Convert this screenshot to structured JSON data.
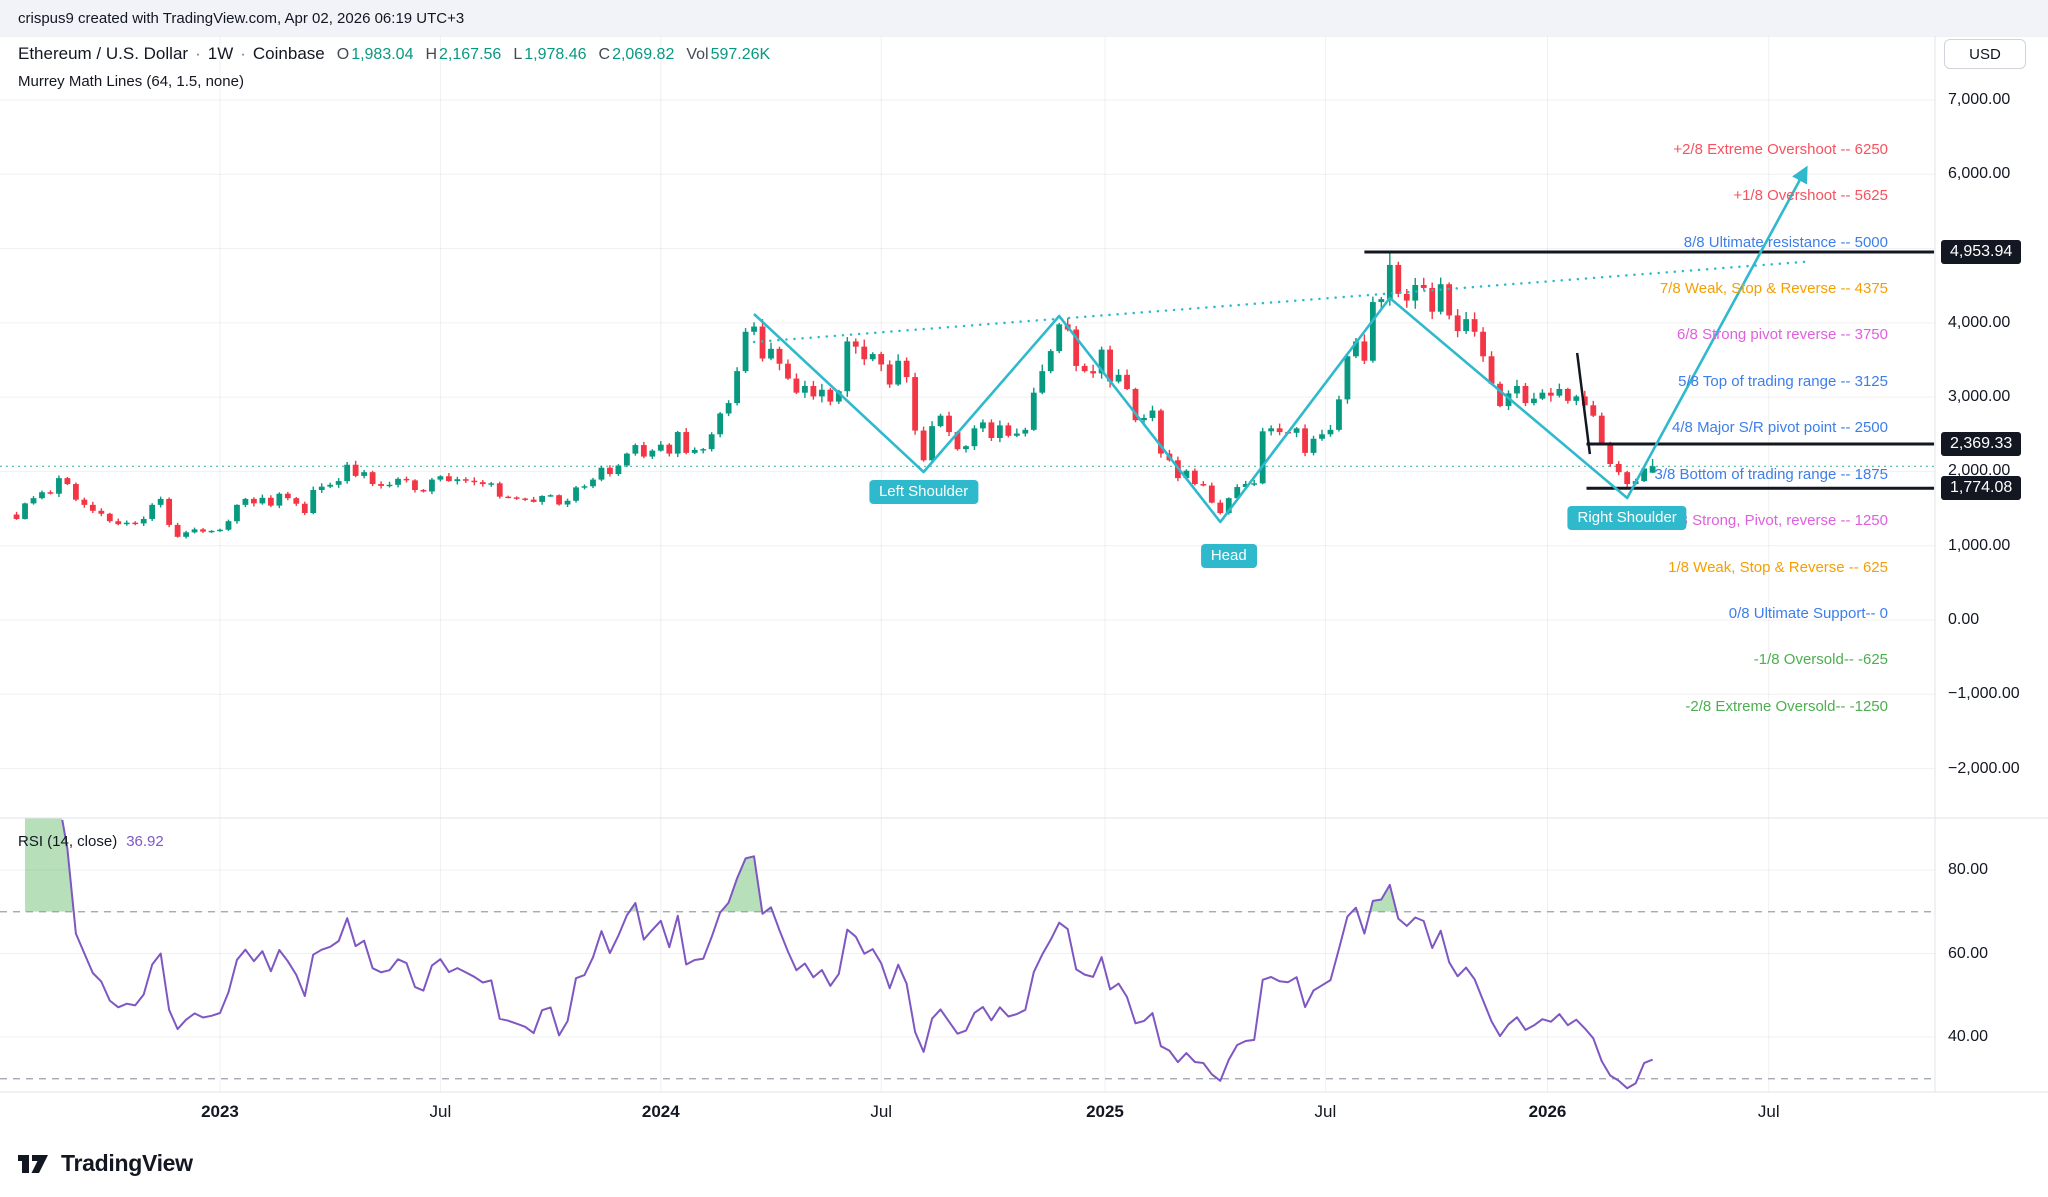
{
  "topbar": {
    "text": "crispus9 created with TradingView.com, Apr 02, 2026 06:19 UTC+3"
  },
  "header": {
    "symbol": "Ethereum / U.S. Dollar",
    "sep": "·",
    "interval": "1W",
    "exchange": "Coinbase",
    "ohlc": {
      "o_label": "O",
      "o": "1,983.04",
      "h_label": "H",
      "h": "2,167.56",
      "l_label": "L",
      "l": "1,978.46",
      "c_label": "C",
      "c": "2,069.82",
      "vol_label": "Vol",
      "vol": "597.26K"
    },
    "indicator": "Murrey Math Lines (64, 1.5, none)"
  },
  "rsi_header": {
    "title": "RSI (14, close)",
    "value": "36.92"
  },
  "price_scale": {
    "currency": "USD"
  },
  "logo": {
    "text": "TradingView"
  },
  "chart_data": {
    "type": "candlestick",
    "title": "Ethereum / U.S. Dollar, 1W, Coinbase",
    "interval": "1W",
    "colors": {
      "up": "#089981",
      "down": "#f23645"
    },
    "first_week_open": 1420,
    "closes": [
      1360,
      1570,
      1640,
      1720,
      1700,
      1910,
      1830,
      1620,
      1550,
      1470,
      1430,
      1330,
      1290,
      1310,
      1300,
      1360,
      1550,
      1630,
      1280,
      1120,
      1180,
      1220,
      1190,
      1200,
      1215,
      1330,
      1550,
      1630,
      1570,
      1645,
      1540,
      1700,
      1640,
      1565,
      1440,
      1750,
      1795,
      1820,
      1870,
      2090,
      1940,
      1990,
      1830,
      1805,
      1820,
      1900,
      1880,
      1750,
      1730,
      1890,
      1935,
      1870,
      1895,
      1875,
      1855,
      1830,
      1840,
      1660,
      1650,
      1635,
      1620,
      1590,
      1670,
      1680,
      1555,
      1605,
      1785,
      1800,
      1890,
      2050,
      1965,
      2080,
      2240,
      2355,
      2200,
      2280,
      2360,
      2240,
      2530,
      2250,
      2290,
      2300,
      2500,
      2780,
      2920,
      3350,
      3880,
      3950,
      3520,
      3650,
      3450,
      3250,
      3060,
      3150,
      3010,
      3100,
      2940,
      3080,
      3750,
      3680,
      3510,
      3580,
      3440,
      3170,
      3490,
      3270,
      2550,
      2150,
      2610,
      2750,
      2530,
      2300,
      2340,
      2580,
      2660,
      2450,
      2620,
      2480,
      2510,
      2560,
      3060,
      3350,
      3620,
      3980,
      3910,
      3420,
      3350,
      3320,
      3640,
      3210,
      3300,
      3110,
      2690,
      2720,
      2820,
      2240,
      2150,
      1910,
      2010,
      1830,
      1810,
      1580,
      1440,
      1640,
      1790,
      1830,
      1840,
      2540,
      2580,
      2530,
      2520,
      2580,
      2250,
      2440,
      2500,
      2560,
      2970,
      3550,
      3750,
      3490,
      4280,
      4320,
      4780,
      4390,
      4300,
      4510,
      4470,
      4150,
      4520,
      4100,
      3890,
      4050,
      3880,
      3550,
      3180,
      2880,
      3050,
      3150,
      2920,
      2980,
      3060,
      3020,
      3110,
      2950,
      3010,
      2890,
      2750,
      2380,
      2100,
      1990,
      1830,
      1870,
      2040,
      2069.82
    ],
    "last_candle": {
      "open": 1983.04,
      "high": 2167.56,
      "low": 1978.46,
      "close": 2069.82,
      "volume": "597.26K"
    },
    "extremes": {
      "swing_high": {
        "index": 162,
        "price": 4953.94
      },
      "swing_low": {
        "index": 190,
        "price": 1774.08
      }
    },
    "last_price_line": 2069.82,
    "y_axis": {
      "range": [
        -2650,
        7850
      ],
      "ticks": [
        {
          "label": "7,000.00",
          "value": 7000
        },
        {
          "label": "6,000.00",
          "value": 6000
        },
        {
          "label": "4,000.00",
          "value": 4000
        },
        {
          "label": "3,000.00",
          "value": 3000
        },
        {
          "label": "2,000.00",
          "value": 2000
        },
        {
          "label": "1,000.00",
          "value": 1000
        },
        {
          "label": "0.00",
          "value": 0
        },
        {
          "label": "−1,000.00",
          "value": -1000
        },
        {
          "label": "−2,000.00",
          "value": -2000
        }
      ],
      "badges": [
        {
          "label": "4,953.94",
          "value": 4953.94
        },
        {
          "label": "2,369.33",
          "value": 2369.33
        },
        {
          "label": "1,774.08",
          "value": 1774.08
        }
      ]
    },
    "x_axis": {
      "ticks": [
        {
          "label": "2023",
          "index": 24,
          "major": true
        },
        {
          "label": "Jul",
          "index": 50,
          "major": false
        },
        {
          "label": "2024",
          "index": 76,
          "major": true
        },
        {
          "label": "Jul",
          "index": 102,
          "major": false
        },
        {
          "label": "2025",
          "index": 128.4,
          "major": true
        },
        {
          "label": "Jul",
          "index": 154.4,
          "major": false
        },
        {
          "label": "2026",
          "index": 180.6,
          "major": true
        },
        {
          "label": "Jul",
          "index": 206.7,
          "major": false
        }
      ]
    },
    "murrey_lines": [
      {
        "text": "+2/8 Extreme Overshoot --  6250",
        "price": 6250,
        "color": "#f7525f"
      },
      {
        "text": "+1/8 Overshoot --  5625",
        "price": 5625,
        "color": "#f7525f"
      },
      {
        "text": "8/8 Ultimate resistance --  5000",
        "price": 5000,
        "color": "#3d7eeb"
      },
      {
        "text": "7/8 Weak, Stop & Reverse --  4375",
        "price": 4375,
        "color": "#f59f00"
      },
      {
        "text": "6/8 Strong pivot reverse --  3750",
        "price": 3750,
        "color": "#df5fe0"
      },
      {
        "text": "5/8 Top of trading range --  3125",
        "price": 3125,
        "color": "#3d7eeb"
      },
      {
        "text": "4/8 Major S/R pivot point --  2500",
        "price": 2500,
        "color": "#3d7eeb"
      },
      {
        "text": "3/8 Bottom of trading range --  1875",
        "price": 1875,
        "color": "#3d7eeb"
      },
      {
        "text": "2/8 Strong, Pivot, reverse --  1250",
        "price": 1250,
        "color": "#df5fe0"
      },
      {
        "text": "1/8 Weak, Stop & Reverse --  625",
        "price": 625,
        "color": "#f59f00"
      },
      {
        "text": "0/8 Ultimate Support--  0",
        "price": 0,
        "color": "#3d7eeb"
      },
      {
        "text": "-1/8 Oversold--  -625",
        "price": -625,
        "color": "#4caf50"
      },
      {
        "text": "-2/8 Extreme Oversold--  -1250",
        "price": -1250,
        "color": "#4caf50"
      }
    ],
    "drawings": {
      "color": "#2fb9cc",
      "zigzag": {
        "points": [
          [
            87,
            4119
          ],
          [
            107,
            1992
          ],
          [
            123,
            4092
          ],
          [
            142,
            1319
          ],
          [
            162,
            4334
          ],
          [
            190,
            1642
          ],
          [
            211,
            6057
          ]
        ],
        "labels": [
          {
            "text": "Left Shoulder",
            "i": 107,
            "price": 1723
          },
          {
            "text": "Head",
            "i": 143,
            "price": 861
          },
          {
            "text": "Right Shoulder",
            "i": 190,
            "price": 1373
          }
        ]
      },
      "neckline": [
        [
          87,
          3742
        ],
        [
          211.3,
          4825
        ]
      ],
      "trendline_black": [
        [
          184.1,
          3594
        ],
        [
          185.6,
          2234
        ]
      ],
      "horizontal_lines": [
        {
          "price": 4953.94,
          "i1": 159,
          "i2": 226.2
        },
        {
          "price": 2369.33,
          "i1": 185.2,
          "i2": 226.2
        },
        {
          "price": 1774.08,
          "i1": 185.2,
          "i2": 226.2
        }
      ]
    },
    "rsi_pane": {
      "type": "line",
      "period": 14,
      "source": "close",
      "last_value": 36.92,
      "color": "#7e57c2",
      "levels": [
        70,
        30
      ],
      "ticks": [
        {
          "label": "80.00",
          "value": 80
        },
        {
          "label": "60.00",
          "value": 60
        },
        {
          "label": "40.00",
          "value": 40
        }
      ],
      "overbought_fill": "rgba(76,175,80,0.4)"
    }
  }
}
